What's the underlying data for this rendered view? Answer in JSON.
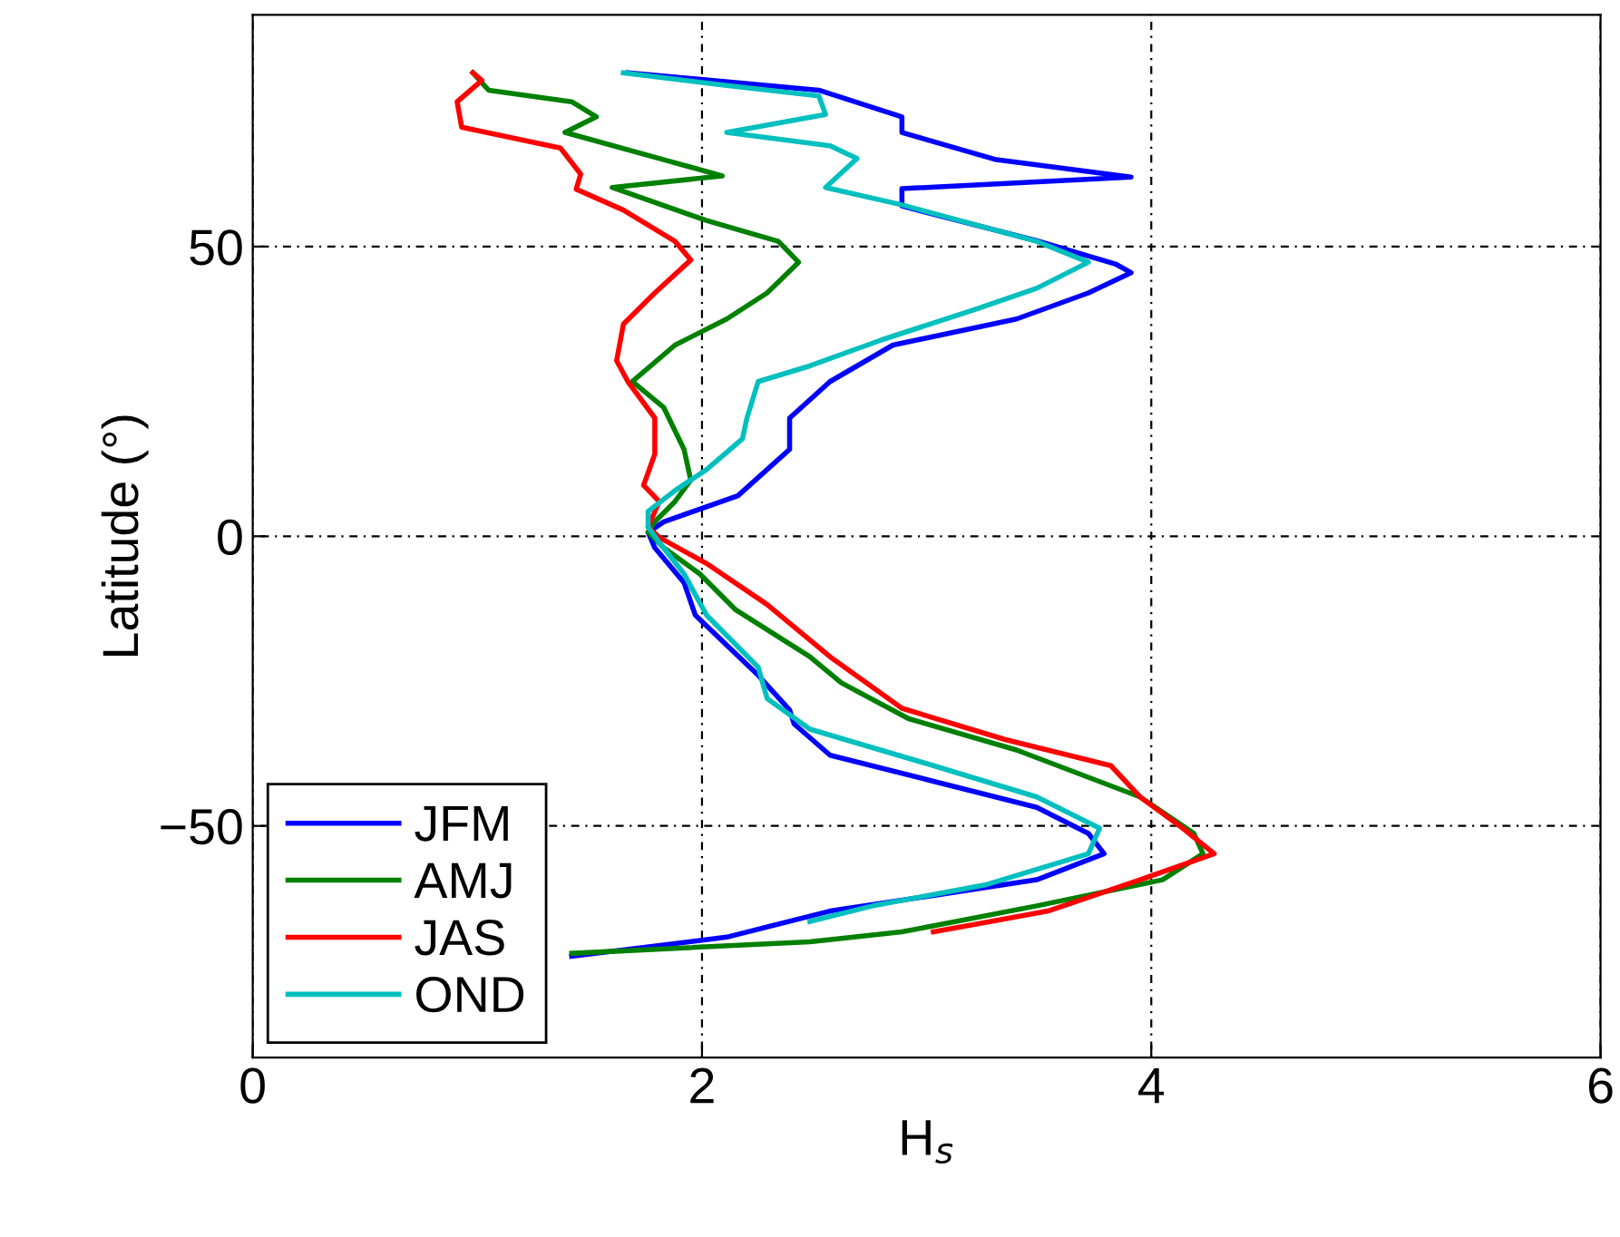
{
  "chart_data": {
    "type": "line",
    "xlabel": "H$_{s}$",
    "ylabel": "Latitude (°)",
    "xlim": [
      0,
      6
    ],
    "xticks": [
      0,
      2,
      4,
      6
    ],
    "ylim": [
      -90,
      90
    ],
    "yticks": [
      {
        "value": -50,
        "label": "−50"
      },
      0,
      50
    ],
    "grid": true,
    "legend": "bottom left",
    "line_style": "solid",
    "marker": "none",
    "series": [
      {
        "name": "JFM",
        "color": "#0000ff",
        "x": [
          1.67,
          2.52,
          2.89,
          2.89,
          3.31,
          3.91,
          2.89,
          2.89,
          3.49,
          3.84,
          3.91,
          3.72,
          3.4,
          2.85,
          2.57,
          2.39,
          2.39,
          2.16,
          1.83,
          1.76,
          1.79,
          1.92,
          1.97,
          2.25,
          2.39,
          2.41,
          2.57,
          3.03,
          3.49,
          3.72,
          3.79,
          3.49,
          2.57,
          2.11,
          1.42
        ],
        "values": [
          80,
          77,
          72.4,
          69.7,
          65,
          62,
          60,
          57,
          51,
          47,
          45.5,
          42,
          37.5,
          33,
          26.7,
          20.4,
          15,
          7,
          2.5,
          0.7,
          -2,
          -8,
          -13.6,
          -24,
          -30,
          -32.4,
          -37.8,
          -42.3,
          -46.8,
          -51.3,
          -54.8,
          -59.3,
          -64.7,
          -69.2,
          -72.5
        ]
      },
      {
        "name": "AMJ",
        "color": "#008000",
        "x": [
          0.98,
          1.05,
          1.42,
          1.53,
          1.39,
          1.83,
          2.09,
          1.6,
          2.02,
          2.34,
          2.43,
          2.29,
          2.11,
          1.88,
          1.69,
          1.83,
          1.92,
          1.95,
          1.88,
          1.79,
          1.76,
          1.83,
          1.99,
          2.15,
          2.48,
          2.62,
          2.92,
          3.4,
          3.95,
          4.19,
          4.23,
          4.05,
          3.49,
          2.89,
          2.48,
          1.42
        ],
        "values": [
          80,
          77,
          75,
          72.4,
          69.7,
          65,
          62.2,
          60.2,
          54.5,
          50.9,
          47.3,
          42,
          37.5,
          33,
          26.7,
          22.2,
          15,
          9.7,
          6,
          2.5,
          0.7,
          -2,
          -6.5,
          -12.7,
          -20.8,
          -25.3,
          -31.5,
          -36.9,
          -45,
          -51.3,
          -54.8,
          -59.3,
          -63.8,
          -68.3,
          -70,
          -72
        ]
      },
      {
        "name": "JAS",
        "color": "#ff0000",
        "x": [
          0.98,
          1.02,
          0.91,
          0.93,
          1.37,
          1.46,
          1.44,
          1.65,
          1.88,
          1.95,
          1.79,
          1.65,
          1.62,
          1.67,
          1.79,
          1.79,
          1.74,
          1.81,
          1.76,
          1.81,
          2.02,
          2.29,
          2.57,
          2.89,
          3.35,
          3.82,
          3.95,
          4.14,
          4.28,
          3.95,
          3.54,
          3.03
        ],
        "values": [
          80,
          78.7,
          75,
          70.6,
          67,
          62.5,
          59.9,
          56.3,
          50.9,
          47.7,
          42,
          36.6,
          30.3,
          26.7,
          20.4,
          14.2,
          8.8,
          6,
          1.6,
          -0.2,
          -4.7,
          -11.8,
          -20.8,
          -29.7,
          -35.1,
          -39.6,
          -45,
          -50.4,
          -54.8,
          -59.3,
          -64.7,
          -68.3
        ]
      },
      {
        "name": "OND",
        "color": "#00bfbf",
        "x": [
          1.65,
          2.11,
          2.52,
          2.55,
          2.11,
          2.57,
          2.69,
          2.55,
          2.89,
          3.49,
          3.72,
          3.49,
          3.22,
          2.8,
          2.48,
          2.25,
          2.2,
          2.18,
          2.02,
          1.88,
          1.76,
          1.76,
          1.81,
          1.92,
          2.02,
          2.25,
          2.29,
          2.48,
          3.03,
          3.49,
          3.77,
          3.72,
          3.26,
          2.76,
          2.48
        ],
        "values": [
          80,
          77.8,
          76,
          72.8,
          69.7,
          67.4,
          65.2,
          60.2,
          57.2,
          50.9,
          47.3,
          42.8,
          39.2,
          33.9,
          29.4,
          26.7,
          20.4,
          16.8,
          11.5,
          7.9,
          4.3,
          1.6,
          -1.1,
          -6.5,
          -13.6,
          -22.6,
          -28,
          -33.3,
          -39.6,
          -45,
          -50.4,
          -54.8,
          -60.2,
          -63.8,
          -66.5
        ]
      }
    ]
  }
}
